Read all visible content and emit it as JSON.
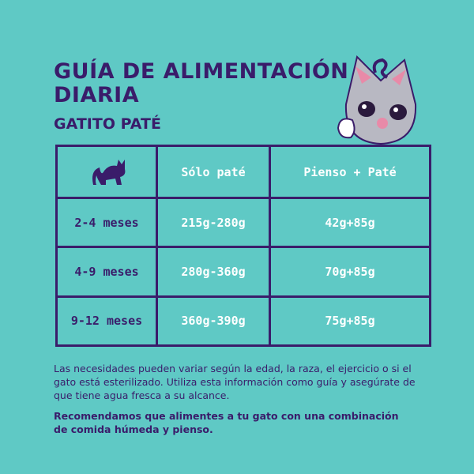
{
  "header": {
    "title": [
      "GUÍA DE ALIMENTACIÓN",
      "DIARIA"
    ],
    "subtitle": "GATITO PATÉ"
  },
  "table": {
    "columns": [
      "Sólo paté",
      "Pienso + Paté"
    ],
    "rows": [
      [
        "2-4 meses",
        "215g-280g",
        "42g+85g"
      ],
      [
        "4-9 meses",
        "280g-360g",
        "70g+85g"
      ],
      [
        "9-12 meses",
        "360g-390g",
        "75g+85g"
      ]
    ]
  },
  "notes": [
    [
      "Las necesidades pueden variar según la edad, la raza, el ejercicio o si el",
      "gato está esterilizado. Utiliza esta información como guía y asegúrate de",
      "que tiene agua fresca a su alcance."
    ],
    [
      "Recomendamos que alimentes a tu gato con una combinación",
      "de comida húmeda y pienso."
    ]
  ]
}
